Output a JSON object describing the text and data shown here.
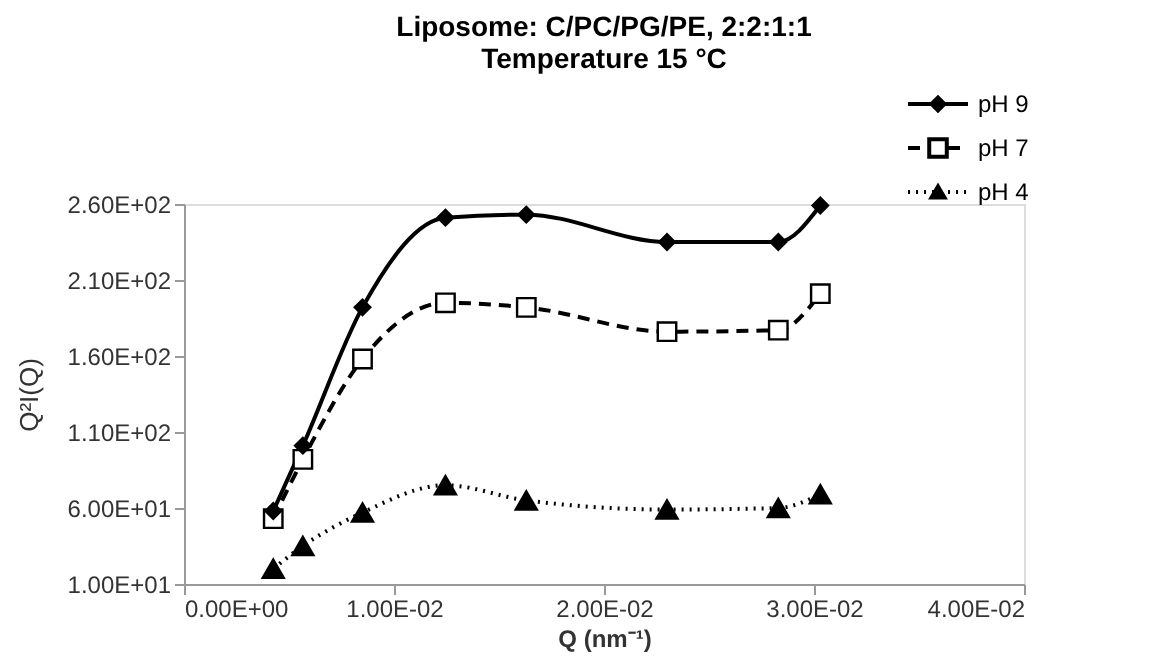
{
  "chart_data": {
    "type": "line",
    "title": "Liposome: C/PC/PG/PE, 2:2:1:1",
    "subtitle": "Temperature  15 °C",
    "xlabel": "Q (nm⁻¹)",
    "ylabel": "Q²I(Q)",
    "x": [
      0.00425,
      0.00566,
      0.0085,
      0.01245,
      0.0163,
      0.023,
      0.0283,
      0.0303
    ],
    "series": [
      {
        "name": "pH 9",
        "color": "#000000",
        "marker": "diamond",
        "line_style": "solid",
        "values": [
          58,
          101,
          192,
          251,
          253,
          235,
          235,
          259
        ]
      },
      {
        "name": "pH 7",
        "color": "#000000",
        "marker": "square",
        "line_style": "dashed",
        "values": [
          53,
          92,
          158,
          195,
          192,
          176,
          177,
          201
        ]
      },
      {
        "name": "pH 4",
        "color": "#000000",
        "marker": "triangle",
        "line_style": "dotted",
        "values": [
          20,
          35,
          57,
          75,
          65,
          59,
          60,
          69
        ]
      }
    ],
    "xlim": [
      0,
      0.04
    ],
    "xticks": [
      {
        "value": 0,
        "label": "0.00E+00"
      },
      {
        "value": 0.01,
        "label": "1.00E-02"
      },
      {
        "value": 0.02,
        "label": "2.00E-02"
      },
      {
        "value": 0.03,
        "label": "3.00E-02"
      },
      {
        "value": 0.04,
        "label": "4.00E-02"
      }
    ],
    "ylim": [
      10,
      260
    ],
    "yticks": [
      {
        "value": 10,
        "label": "1.00E+01"
      },
      {
        "value": 60,
        "label": "6.00E+01"
      },
      {
        "value": 110,
        "label": "1.10E+02"
      },
      {
        "value": 160,
        "label": "1.60E+02"
      },
      {
        "value": 210,
        "label": "2.10E+02"
      },
      {
        "value": 260,
        "label": "2.60E+02"
      }
    ],
    "grid": false,
    "legend": "top right"
  }
}
